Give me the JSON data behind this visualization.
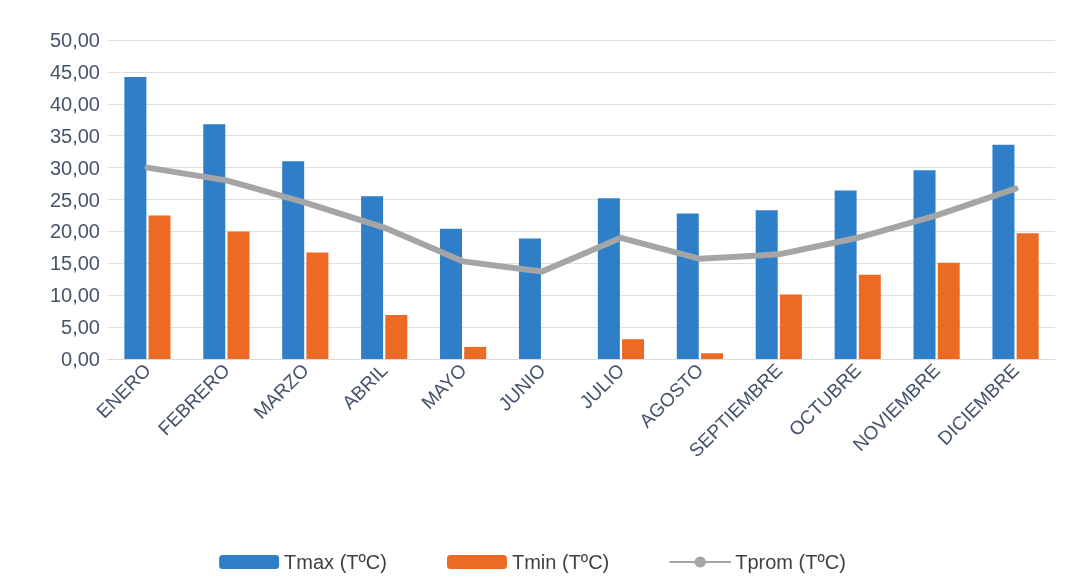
{
  "chart_data": {
    "type": "bar",
    "categories": [
      "ENERO",
      "FEBRERO",
      "MARZO",
      "ABRIL",
      "MAYO",
      "JUNIO",
      "JULIO",
      "AGOSTO",
      "SEPTIEMBRE",
      "OCTUBRE",
      "NOVIEMBRE",
      "DICIEMBRE"
    ],
    "series": [
      {
        "name": "Tmax (TºC)",
        "color": "#2e7fc8",
        "values": [
          44.2,
          36.8,
          31.0,
          25.5,
          20.4,
          18.9,
          25.2,
          22.8,
          23.3,
          26.4,
          29.6,
          33.6
        ]
      },
      {
        "name": "Tmin (TºC)",
        "color": "#ed6a25",
        "values": [
          22.5,
          20.0,
          16.7,
          6.9,
          1.9,
          null,
          3.1,
          0.9,
          10.1,
          13.2,
          15.1,
          19.7
        ]
      },
      {
        "name": "Tprom (TºC)",
        "type": "line",
        "color": "#a5a5a5",
        "marker": "none",
        "values": [
          30.0,
          28.0,
          24.5,
          20.6,
          15.3,
          13.7,
          19.0,
          15.7,
          16.4,
          19.0,
          22.5,
          26.7
        ]
      }
    ],
    "ylim": [
      0,
      50
    ],
    "yticks": [
      {
        "value": 0,
        "label": "0,00"
      },
      {
        "value": 5,
        "label": "5,00"
      },
      {
        "value": 10,
        "label": "10,00"
      },
      {
        "value": 15,
        "label": "15,00"
      },
      {
        "value": 20,
        "label": "20,00"
      },
      {
        "value": 25,
        "label": "25,00"
      },
      {
        "value": 30,
        "label": "30,00"
      },
      {
        "value": 35,
        "label": "35,00"
      },
      {
        "value": 40,
        "label": "40,00"
      },
      {
        "value": 45,
        "label": "45,00"
      },
      {
        "value": 50,
        "label": "50,00"
      }
    ],
    "grid": "y",
    "legend": "bottom"
  }
}
